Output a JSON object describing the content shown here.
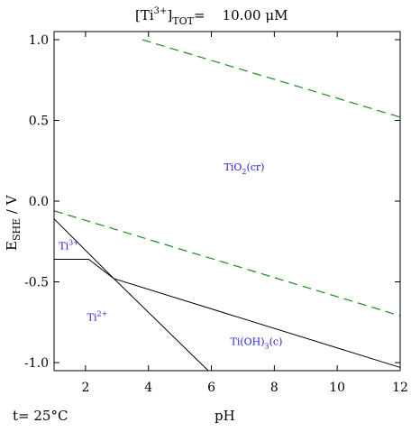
{
  "chart_data": {
    "type": "line",
    "title_prefix": "[Ti",
    "title_sup": "3+",
    "title_bracket": "]",
    "title_sub": "TOT",
    "title_value": "=    10.00 μM",
    "xlabel": "pH",
    "ylabel_main": "E",
    "ylabel_sub": "SHE",
    "ylabel_unit": " / V",
    "footer_temperature": "t= 25°C",
    "xlim": [
      1,
      12
    ],
    "ylim": [
      -1.05,
      1.05
    ],
    "x_ticks": [
      2,
      4,
      6,
      8,
      10,
      12
    ],
    "y_ticks": [
      1.0,
      0.5,
      0.0,
      -0.5,
      -1.0
    ],
    "x_tick_labels": [
      "2",
      "4",
      "6",
      "8",
      "10",
      "12"
    ],
    "y_tick_labels": [
      "1.0",
      "0.5",
      "0.0",
      "-0.5",
      "-1.0"
    ],
    "colors": {
      "boundary": "#000000",
      "water_lines": "#1e8a1e",
      "region_text": "#1d1dd6"
    },
    "water_lines": [
      {
        "points": [
          [
            3.8,
            1.0
          ],
          [
            12,
            0.52
          ]
        ]
      },
      {
        "points": [
          [
            1,
            -0.06
          ],
          [
            12,
            -0.71
          ]
        ]
      }
    ],
    "boundaries": [
      {
        "points": [
          [
            1,
            -0.11
          ],
          [
            2.9,
            -0.48
          ],
          [
            5.9,
            -1.05
          ]
        ]
      },
      {
        "points": [
          [
            1,
            -0.36
          ],
          [
            2.1,
            -0.36
          ],
          [
            2.9,
            -0.48
          ],
          [
            12,
            -1.03
          ]
        ]
      }
    ],
    "regions": [
      {
        "main": "TiO",
        "sub": "2",
        "tail": "(cr)",
        "x": 6.4,
        "y": 0.19
      },
      {
        "main": "Ti",
        "sup": "3+",
        "x": 1.15,
        "y": -0.3
      },
      {
        "main": "Ti",
        "sup": "2+",
        "x": 2.05,
        "y": -0.74
      },
      {
        "main": "Ti(OH)",
        "sub": "3",
        "tail": "(c)",
        "x": 6.6,
        "y": -0.89
      }
    ]
  }
}
